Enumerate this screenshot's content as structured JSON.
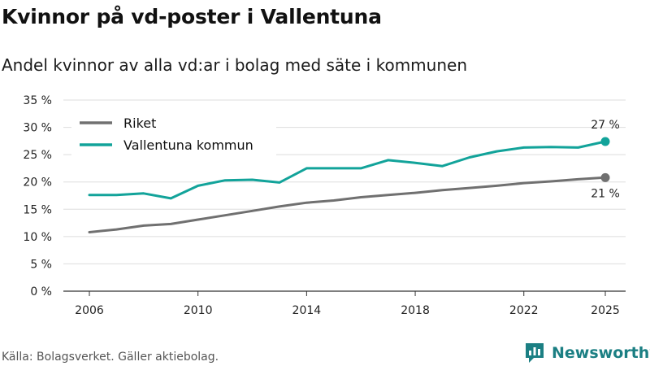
{
  "title": "Kvinnor på vd-poster i Vallentuna",
  "subtitle": "Andel kvinnor av alla vd:ar i bolag med säte i kommunen",
  "source": "Källa: Bolagsverket. Gäller aktiebolag.",
  "brand": {
    "name": "Newsworthy",
    "icon": "bar-chart-logo-icon",
    "color": "#1b7f83"
  },
  "chart_data": {
    "type": "line",
    "x": [
      2006,
      2007,
      2008,
      2009,
      2010,
      2011,
      2012,
      2013,
      2014,
      2015,
      2016,
      2017,
      2018,
      2019,
      2020,
      2021,
      2022,
      2023,
      2024,
      2025
    ],
    "series": [
      {
        "name": "Riket",
        "color": "#707070",
        "values": [
          10.8,
          11.3,
          12.0,
          12.3,
          13.1,
          13.9,
          14.7,
          15.5,
          16.2,
          16.6,
          17.2,
          17.6,
          18.0,
          18.5,
          18.9,
          19.3,
          19.8,
          20.1,
          20.5,
          20.8
        ],
        "end_label": "21 %"
      },
      {
        "name": "Vallentuna kommun",
        "color": "#12a39a",
        "values": [
          17.6,
          17.6,
          17.9,
          17.0,
          19.3,
          20.3,
          20.4,
          19.9,
          22.5,
          22.5,
          22.5,
          24.0,
          23.5,
          22.9,
          24.5,
          25.6,
          26.3,
          26.4,
          26.3,
          27.4
        ],
        "end_label": "27 %"
      }
    ],
    "ylim": [
      0,
      35
    ],
    "yticks": [
      0,
      5,
      10,
      15,
      20,
      25,
      30,
      35
    ],
    "ytick_labels": [
      "0 %",
      "5 %",
      "10 %",
      "15 %",
      "20 %",
      "25 %",
      "30 %",
      "35 %"
    ],
    "xticks": [
      2006,
      2010,
      2014,
      2018,
      2022,
      2025
    ],
    "xtick_labels": [
      "2006",
      "2010",
      "2014",
      "2018",
      "2022",
      "2025"
    ],
    "legend": "top-left",
    "grid": true
  }
}
